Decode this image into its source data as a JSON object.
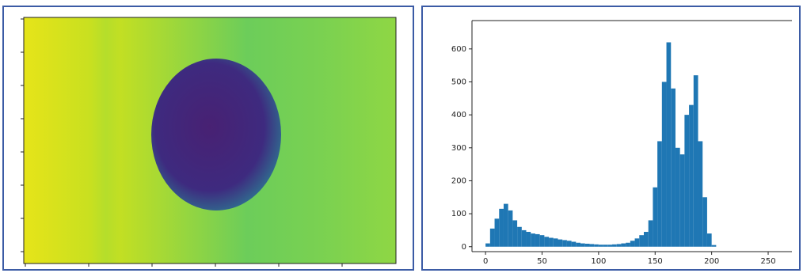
{
  "chart_data": {
    "type": "histogram",
    "bins": [
      0,
      4,
      8,
      12,
      16,
      20,
      24,
      28,
      32,
      36,
      40,
      44,
      48,
      52,
      56,
      60,
      64,
      68,
      72,
      76,
      80,
      84,
      88,
      92,
      96,
      100,
      104,
      108,
      112,
      116,
      120,
      124,
      128,
      132,
      136,
      140,
      144,
      148,
      152,
      156,
      160,
      164,
      168,
      172,
      176,
      180,
      184,
      188,
      192,
      196,
      200,
      204,
      208,
      212,
      216,
      220,
      224,
      228,
      232,
      236,
      240,
      244,
      248,
      252,
      256
    ],
    "counts": [
      10,
      55,
      85,
      115,
      130,
      110,
      80,
      60,
      50,
      45,
      40,
      38,
      35,
      30,
      27,
      25,
      22,
      20,
      18,
      15,
      12,
      10,
      9,
      8,
      7,
      6,
      6,
      6,
      7,
      8,
      10,
      12,
      18,
      25,
      35,
      45,
      80,
      180,
      320,
      500,
      620,
      480,
      300,
      280,
      400,
      430,
      520,
      320,
      150,
      40,
      5,
      0,
      0,
      0,
      0,
      0,
      0,
      0,
      0,
      0,
      0,
      0,
      0,
      0
    ],
    "color": "#1f77b4",
    "xlim": [
      -12,
      271
    ],
    "ylim": [
      -15,
      686
    ],
    "xticks": [
      0,
      50,
      100,
      150,
      200,
      250
    ],
    "yticks": [
      0,
      100,
      200,
      300,
      400,
      500,
      600
    ]
  }
}
